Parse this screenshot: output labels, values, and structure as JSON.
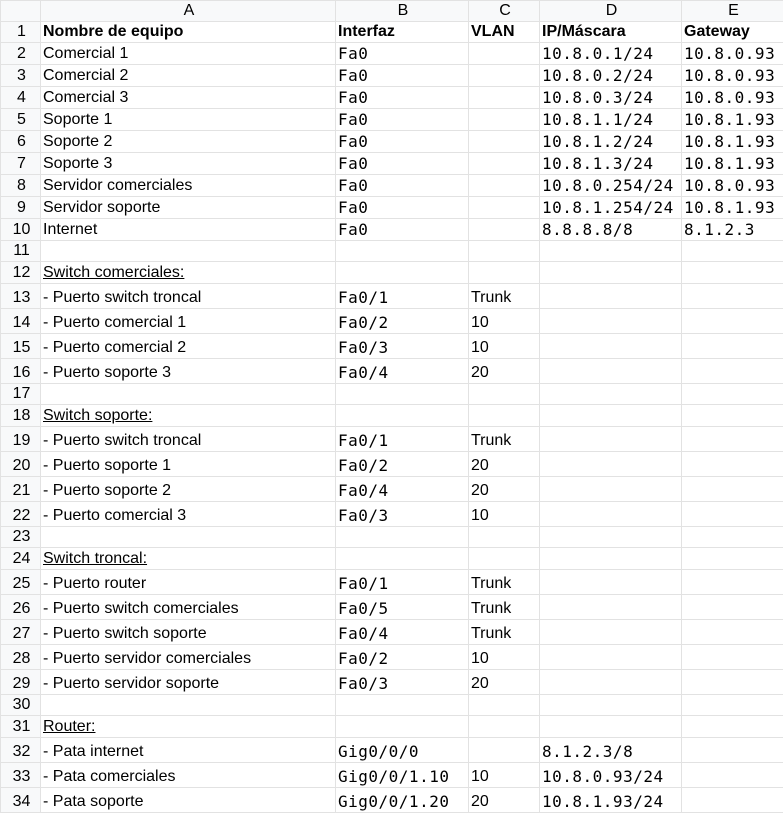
{
  "columns": [
    "A",
    "B",
    "C",
    "D",
    "E"
  ],
  "rows": [
    {
      "n": "1",
      "a": "Nombre de equipo",
      "b": "Interfaz",
      "c": "VLAN",
      "d": "IP/Máscara",
      "e": "Gateway",
      "type": "header"
    },
    {
      "n": "2",
      "a": "Comercial 1",
      "b": "Fa0",
      "c": "",
      "d": "10.8.0.1/24",
      "e": "10.8.0.93",
      "type": "device"
    },
    {
      "n": "3",
      "a": "Comercial 2",
      "b": "Fa0",
      "c": "",
      "d": "10.8.0.2/24",
      "e": "10.8.0.93",
      "type": "device"
    },
    {
      "n": "4",
      "a": "Comercial 3",
      "b": "Fa0",
      "c": "",
      "d": "10.8.0.3/24",
      "e": "10.8.0.93",
      "type": "device"
    },
    {
      "n": "5",
      "a": "Soporte 1",
      "b": "Fa0",
      "c": "",
      "d": "10.8.1.1/24",
      "e": "10.8.1.93",
      "type": "device"
    },
    {
      "n": "6",
      "a": "Soporte 2",
      "b": "Fa0",
      "c": "",
      "d": "10.8.1.2/24",
      "e": "10.8.1.93",
      "type": "device"
    },
    {
      "n": "7",
      "a": "Soporte 3",
      "b": "Fa0",
      "c": "",
      "d": "10.8.1.3/24",
      "e": "10.8.1.93",
      "type": "device"
    },
    {
      "n": "8",
      "a": "Servidor comerciales",
      "b": "Fa0",
      "c": "",
      "d": "10.8.0.254/24",
      "e": "10.8.0.93",
      "type": "device"
    },
    {
      "n": "9",
      "a": "Servidor soporte",
      "b": "Fa0",
      "c": "",
      "d": "10.8.1.254/24",
      "e": "10.8.1.93",
      "type": "device"
    },
    {
      "n": "10",
      "a": "Internet",
      "b": "Fa0",
      "c": "",
      "d": "8.8.8.8/8",
      "e": "8.1.2.3",
      "type": "device"
    },
    {
      "n": "11",
      "a": "",
      "b": "",
      "c": "",
      "d": "",
      "e": "",
      "type": "blank"
    },
    {
      "n": "12",
      "a": "Switch comerciales:",
      "b": "",
      "c": "",
      "d": "",
      "e": "",
      "type": "section"
    },
    {
      "n": "13",
      "a": "- Puerto switch troncal",
      "b": "Fa0/1",
      "c": "Trunk",
      "d": "",
      "e": "",
      "type": "port"
    },
    {
      "n": "14",
      "a": "- Puerto comercial 1",
      "b": "Fa0/2",
      "c": "10",
      "d": "",
      "e": "",
      "type": "port"
    },
    {
      "n": "15",
      "a": "- Puerto comercial 2",
      "b": "Fa0/3",
      "c": "10",
      "d": "",
      "e": "",
      "type": "port"
    },
    {
      "n": "16",
      "a": "- Puerto soporte 3",
      "b": "Fa0/4",
      "c": "20",
      "d": "",
      "e": "",
      "type": "port"
    },
    {
      "n": "17",
      "a": "",
      "b": "",
      "c": "",
      "d": "",
      "e": "",
      "type": "blank"
    },
    {
      "n": "18",
      "a": "Switch soporte:",
      "b": "",
      "c": "",
      "d": "",
      "e": "",
      "type": "section"
    },
    {
      "n": "19",
      "a": "- Puerto switch troncal",
      "b": "Fa0/1",
      "c": "Trunk",
      "d": "",
      "e": "",
      "type": "port"
    },
    {
      "n": "20",
      "a": "- Puerto soporte 1",
      "b": "Fa0/2",
      "c": "20",
      "d": "",
      "e": "",
      "type": "port"
    },
    {
      "n": "21",
      "a": "- Puerto soporte 2",
      "b": "Fa0/4",
      "c": "20",
      "d": "",
      "e": "",
      "type": "port"
    },
    {
      "n": "22",
      "a": "- Puerto comercial 3",
      "b": "Fa0/3",
      "c": "10",
      "d": "",
      "e": "",
      "type": "port"
    },
    {
      "n": "23",
      "a": "",
      "b": "",
      "c": "",
      "d": "",
      "e": "",
      "type": "blank"
    },
    {
      "n": "24",
      "a": "Switch troncal:",
      "b": "",
      "c": "",
      "d": "",
      "e": "",
      "type": "section"
    },
    {
      "n": "25",
      "a": "- Puerto router",
      "b": "Fa0/1",
      "c": "Trunk",
      "d": "",
      "e": "",
      "type": "port"
    },
    {
      "n": "26",
      "a": "- Puerto switch comerciales",
      "b": "Fa0/5",
      "c": "Trunk",
      "d": "",
      "e": "",
      "type": "port"
    },
    {
      "n": "27",
      "a": "- Puerto switch soporte",
      "b": "Fa0/4",
      "c": "Trunk",
      "d": "",
      "e": "",
      "type": "port"
    },
    {
      "n": "28",
      "a": "- Puerto servidor comerciales",
      "b": "Fa0/2",
      "c": "10",
      "d": "",
      "e": "",
      "type": "port"
    },
    {
      "n": "29",
      "a": "- Puerto servidor soporte",
      "b": "Fa0/3",
      "c": "20",
      "d": "",
      "e": "",
      "type": "port"
    },
    {
      "n": "30",
      "a": "",
      "b": "",
      "c": "",
      "d": "",
      "e": "",
      "type": "blank"
    },
    {
      "n": "31",
      "a": "Router:",
      "b": "",
      "c": "",
      "d": "",
      "e": "",
      "type": "section"
    },
    {
      "n": "32",
      "a": "- Pata internet",
      "b": "Gig0/0/0",
      "c": "",
      "d": "8.1.2.3/8",
      "e": "",
      "type": "port"
    },
    {
      "n": "33",
      "a": "- Pata comerciales",
      "b": "Gig0/0/1.10",
      "c": "10",
      "d": "10.8.0.93/24",
      "e": "",
      "type": "port"
    },
    {
      "n": "34",
      "a": "- Pata soporte",
      "b": "Gig0/0/1.20",
      "c": "20",
      "d": "10.8.1.93/24",
      "e": "",
      "type": "port"
    }
  ]
}
